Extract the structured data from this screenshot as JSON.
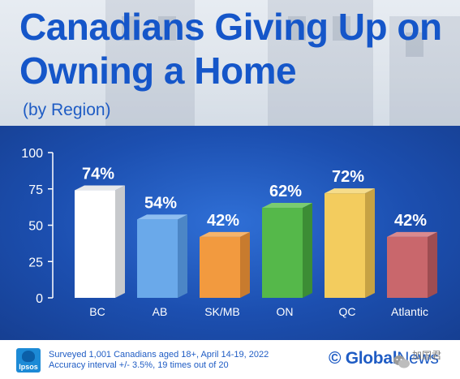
{
  "header": {
    "title": "Canadians Giving Up on Owning a Home",
    "subtitle": "(by Region)"
  },
  "chart_data": {
    "type": "bar",
    "categories": [
      "BC",
      "AB",
      "SK/MB",
      "ON",
      "QC",
      "Atlantic"
    ],
    "values": [
      74,
      54,
      42,
      62,
      72,
      42
    ],
    "data_labels": [
      "74%",
      "54%",
      "42%",
      "62%",
      "72%",
      "42%"
    ],
    "colors": [
      "#ffffff",
      "#6aa9ea",
      "#f29a3f",
      "#55b84a",
      "#f3cc5e",
      "#c9676c"
    ],
    "side_colors": [
      "#c7c9cc",
      "#4c86c6",
      "#c87b2e",
      "#3c8d35",
      "#c6a244",
      "#9e4d52"
    ],
    "top_colors": [
      "#e6e8ea",
      "#8fbef0",
      "#f7b46a",
      "#7acb70",
      "#f6dc8a",
      "#d98a8e"
    ],
    "yticks": [
      "0",
      "25",
      "50",
      "75",
      "100"
    ],
    "ylim": [
      0,
      100
    ],
    "title": "Canadians Giving Up on Owning a Home",
    "subtitle": "(by Region)",
    "xlabel": "",
    "ylabel": ""
  },
  "footer": {
    "pollster": "Ipsos",
    "note_line1": "Surveyed 1,001 Canadians aged 18+, April 14-19, 2022",
    "note_line2": "Accuracy interval +/- 3.5%, 19 times out of 20",
    "brand_prefix": "© Global",
    "brand_suffix": "News",
    "watermark": "加国君"
  }
}
